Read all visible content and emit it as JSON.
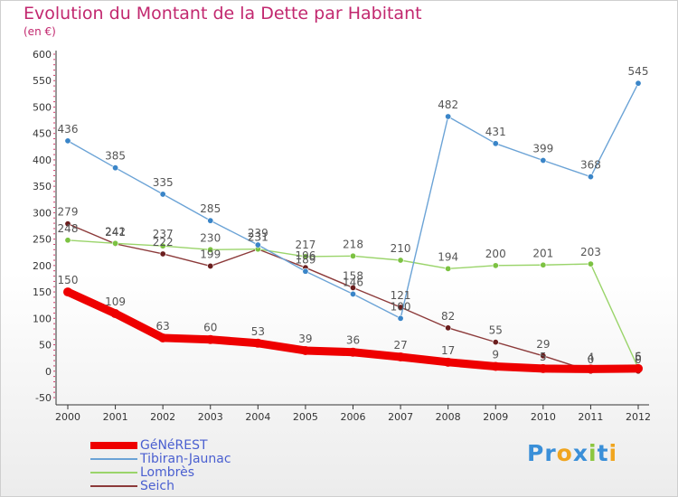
{
  "title": "Evolution du Montant de la Dette par Habitant",
  "subtitle": "(en €)",
  "logo": {
    "text": "Proxiti",
    "letters": [
      "P",
      "r",
      "o",
      "x",
      "i",
      "t",
      "i"
    ],
    "colors": [
      "#3a8fd8",
      "#3a8fd8",
      "#f0a51f",
      "#3a8fd8",
      "#8cc63f",
      "#3a8fd8",
      "#f0a51f"
    ]
  },
  "chart_data": {
    "type": "line",
    "title": "Evolution du Montant de la Dette par Habitant",
    "ylabel": "(en €)",
    "xlabel": "",
    "categories": [
      "2000",
      "2001",
      "2002",
      "2003",
      "2004",
      "2005",
      "2006",
      "2007",
      "2008",
      "2009",
      "2010",
      "2011",
      "2012"
    ],
    "ylim": [
      -50,
      600
    ],
    "yticks": [
      "-50",
      "0",
      "50",
      "100",
      "150",
      "200",
      "250",
      "300",
      "350",
      "400",
      "450",
      "500",
      "550",
      "600"
    ],
    "grid": false,
    "legend_position": "bottom-left",
    "series": [
      {
        "name": "GéNéREST",
        "color": "#ee0000",
        "point_color": "#ee0000",
        "width": "thick",
        "values": [
          150,
          109,
          63,
          60,
          53,
          39,
          36,
          27,
          17,
          9,
          5,
          4,
          5
        ],
        "labels": [
          "150",
          "109",
          "63",
          "60",
          "53",
          "39",
          "36",
          "27",
          "17",
          "9",
          "5",
          "4",
          "5"
        ]
      },
      {
        "name": "Tibiran-Jaunac",
        "color": "#6ba3d6",
        "point_color": "#3a85c8",
        "width": "thin",
        "values": [
          436,
          385,
          335,
          285,
          239,
          189,
          146,
          100,
          482,
          431,
          399,
          368,
          545
        ],
        "labels": [
          "436",
          "385",
          "335",
          "285",
          "239",
          "189",
          "146",
          "100",
          "482",
          "431",
          "399",
          "368",
          "545"
        ]
      },
      {
        "name": "Lombrès",
        "color": "#9ad46a",
        "point_color": "#7cc242",
        "width": "thin",
        "values": [
          248,
          242,
          237,
          230,
          231,
          217,
          218,
          210,
          194,
          200,
          201,
          203,
          6
        ],
        "labels": [
          "248",
          "242",
          "237",
          "230",
          "231",
          "217",
          "218",
          "210",
          "194",
          "200",
          "201",
          "203",
          "6"
        ]
      },
      {
        "name": "Seich",
        "color": "#8c3a3a",
        "point_color": "#6b1e1e",
        "width": "thin",
        "values": [
          279,
          241,
          222,
          199,
          231,
          196,
          158,
          121,
          82,
          55,
          29,
          0,
          0
        ],
        "labels": [
          "279",
          "241",
          "222",
          "199",
          "231",
          "196",
          "158",
          "121",
          "82",
          "55",
          "29",
          "0",
          "0"
        ]
      }
    ]
  },
  "legend": [
    {
      "label": "GéNéREST",
      "color": "#ee0000"
    },
    {
      "label": "Tibiran-Jaunac",
      "color": "#6ba3d6"
    },
    {
      "label": "Lombrès",
      "color": "#9ad46a"
    },
    {
      "label": "Seich",
      "color": "#8c3a3a"
    }
  ]
}
